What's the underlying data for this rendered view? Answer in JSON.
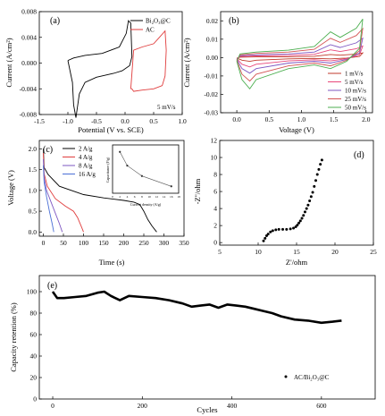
{
  "chart_data": [
    {
      "panel": "(a)",
      "type": "line",
      "xlabel": "Potential (V vs. SCE)",
      "ylabel": "Current (A/cm²)",
      "xlim": [
        -1.5,
        1.0
      ],
      "ylim": [
        -0.008,
        0.008
      ],
      "xticks": [
        "-1.5",
        "-1.0",
        "-0.5",
        "0.0",
        "0.5",
        "1.0"
      ],
      "yticks": [
        "-0.008",
        "-0.004",
        "0.000",
        "0.004",
        "0.008"
      ],
      "annotation": "5 mV/s",
      "series": [
        {
          "name": "Bi₂O₃@C",
          "color": "#000000",
          "x": [
            -1.0,
            -0.9,
            -0.7,
            -0.4,
            -0.1,
            0.02,
            0.06,
            0.1,
            0.12,
            0.08,
            -0.05,
            -0.2,
            -0.5,
            -0.7,
            -0.8,
            -0.86,
            -0.9,
            -0.92,
            -1.0
          ],
          "y": [
            0.0004,
            0.0008,
            0.0012,
            0.0015,
            0.0025,
            0.0046,
            0.0066,
            0.0062,
            0.001,
            -0.0004,
            -0.0012,
            -0.0016,
            -0.0022,
            -0.003,
            -0.0048,
            -0.0085,
            -0.0065,
            -0.003,
            0.0004
          ]
        },
        {
          "name": "AC",
          "color": "#e03c3c",
          "x": [
            0.1,
            0.15,
            0.3,
            0.5,
            0.6,
            0.7,
            0.72,
            0.7,
            0.65,
            0.5,
            0.3,
            0.15,
            0.12,
            0.1
          ],
          "y": [
            -0.004,
            0.002,
            0.0025,
            0.003,
            0.004,
            0.005,
            0.002,
            -0.002,
            -0.0035,
            -0.004,
            -0.0042,
            -0.0044,
            -0.004,
            -0.004
          ]
        }
      ]
    },
    {
      "panel": "(b)",
      "type": "line",
      "xlabel": "Voltage (V)",
      "ylabel": "Current (A/cm²)",
      "xlim": [
        -0.25,
        2.1
      ],
      "ylim": [
        -0.03,
        0.025
      ],
      "xticks": [
        "0.0",
        "0.5",
        "1.0",
        "1.5",
        "2.0"
      ],
      "yticks": [
        "-0.03",
        "-0.02",
        "-0.01",
        "0.00",
        "0.01",
        "0.02"
      ],
      "series": [
        {
          "name": "1 mV/s",
          "color": "#c0392b",
          "scale": 0.12
        },
        {
          "name": "5 mV/s",
          "color": "#e8477a",
          "scale": 0.3
        },
        {
          "name": "10 mV/s",
          "color": "#7e57c2",
          "scale": 0.5
        },
        {
          "name": "25 mV/s",
          "color": "#d35454",
          "scale": 0.75
        },
        {
          "name": "50 mV/s",
          "color": "#4caf50",
          "scale": 1.0
        }
      ]
    },
    {
      "panel": "(c)",
      "type": "line",
      "xlabel": "Time (s)",
      "ylabel": "Voltage (V)",
      "xlim": [
        -10,
        350
      ],
      "ylim": [
        -0.1,
        2.2
      ],
      "xticks": [
        "0",
        "50",
        "100",
        "150",
        "200",
        "250",
        "300",
        "350"
      ],
      "yticks": [
        "0.0",
        "0.5",
        "1.0",
        "1.5",
        "2.0"
      ],
      "series": [
        {
          "name": "2 A/g",
          "color": "#000000",
          "x": [
            0,
            2,
            12,
            40,
            100,
            150,
            200,
            225,
            240,
            250,
            260,
            270,
            282
          ],
          "y": [
            2.0,
            1.55,
            1.38,
            1.1,
            0.9,
            0.82,
            0.76,
            0.72,
            0.66,
            0.5,
            0.3,
            0.15,
            0.0
          ]
        },
        {
          "name": "4 A/g",
          "color": "#e03c3c",
          "x": [
            0,
            2,
            10,
            30,
            55,
            75,
            85,
            95,
            100
          ],
          "y": [
            1.9,
            1.4,
            1.1,
            0.8,
            0.62,
            0.5,
            0.35,
            0.12,
            0.0
          ]
        },
        {
          "name": "8 A/g",
          "color": "#7e57c2",
          "x": [
            0,
            2,
            8,
            20,
            30,
            40,
            47
          ],
          "y": [
            1.75,
            1.3,
            1.0,
            0.7,
            0.45,
            0.2,
            0.0
          ]
        },
        {
          "name": "16 A/g",
          "color": "#4a6fd6",
          "x": [
            0,
            2,
            8,
            15,
            22,
            26
          ],
          "y": [
            1.6,
            1.2,
            0.85,
            0.5,
            0.2,
            0.0
          ]
        }
      ],
      "inset": {
        "xlabel": "Current density (A/g)",
        "ylabel": "Capacitance (F/g)",
        "xticks": [
          "0",
          "2",
          "4",
          "6",
          "8",
          "10",
          "12",
          "14",
          "16",
          "18"
        ],
        "x": [
          2,
          4,
          8,
          16
        ],
        "y": [
          90,
          70,
          55,
          40
        ]
      }
    },
    {
      "panel": "(d)",
      "type": "scatter",
      "xlabel": "Z'/ohm",
      "ylabel": "-Z''/ohm",
      "xlim": [
        5,
        25
      ],
      "ylim": [
        -0.3,
        12
      ],
      "xticks": [
        "5",
        "10",
        "15",
        "20",
        "25"
      ],
      "yticks": [
        "0",
        "2",
        "4",
        "6",
        "8",
        "10",
        "12"
      ],
      "x": [
        10.7,
        10.9,
        11.1,
        11.3,
        11.6,
        11.9,
        12.3,
        12.7,
        13.2,
        13.7,
        14.2,
        14.6,
        14.9,
        15.1,
        15.3,
        15.5,
        15.7,
        15.9,
        16.1,
        16.3,
        16.5,
        16.7,
        16.9,
        17.1,
        17.3,
        17.5,
        17.7,
        17.9,
        18.1,
        18.3
      ],
      "y": [
        0.2,
        0.5,
        0.8,
        1.0,
        1.25,
        1.4,
        1.5,
        1.55,
        1.55,
        1.55,
        1.6,
        1.7,
        1.85,
        2.05,
        2.3,
        2.55,
        2.85,
        3.2,
        3.6,
        4.0,
        4.4,
        4.9,
        5.4,
        5.9,
        6.6,
        7.3,
        8.0,
        8.6,
        9.2,
        9.7
      ]
    },
    {
      "panel": "(e)",
      "type": "line",
      "xlabel": "Cycles",
      "ylabel": "Capacity retention (%)",
      "xlim": [
        -30,
        720
      ],
      "ylim": [
        0,
        115
      ],
      "xticks": [
        "0",
        "200",
        "400",
        "600"
      ],
      "yticks": [
        "0",
        "20",
        "40",
        "60",
        "80",
        "100"
      ],
      "series": [
        {
          "name": "AC/Bi₂O₃@C",
          "color": "#000000",
          "x": [
            0,
            10,
            25,
            50,
            75,
            100,
            115,
            130,
            150,
            170,
            200,
            230,
            260,
            290,
            310,
            330,
            350,
            370,
            390,
            410,
            430,
            450,
            470,
            490,
            510,
            540,
            570,
            600,
            625,
            645
          ],
          "y": [
            100,
            94,
            94,
            95,
            96,
            99,
            100,
            96,
            92,
            96,
            95,
            94,
            92,
            89,
            86,
            87,
            88,
            85,
            88,
            87,
            86,
            84,
            82,
            80,
            77,
            74,
            73,
            71,
            72,
            73
          ]
        }
      ]
    }
  ]
}
